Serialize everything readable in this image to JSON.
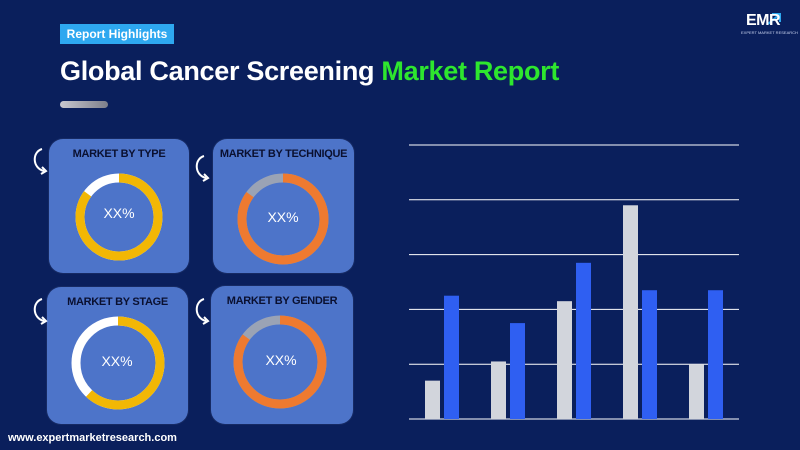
{
  "header": {
    "badge": "Report Highlights",
    "title_main": "Global Cancer Screening ",
    "title_accent": "Market Report"
  },
  "logo": {
    "text": "EMR",
    "subtitle": "EXPERT MARKET RESEARCH"
  },
  "segments": [
    {
      "label": "MARKET BY TYPE",
      "value": "XX%",
      "ring_color": "#f2b705",
      "track_color": "#ffffff",
      "fill_fraction": 0.85
    },
    {
      "label": "MARKET BY TECHNIQUE",
      "value": "XX%",
      "ring_color": "#ee7a30",
      "track_color": "#9aa3b5",
      "fill_fraction": 0.85
    },
    {
      "label": "MARKET BY STAGE",
      "value": "XX%",
      "ring_color": "#f2b705",
      "track_color": "#ffffff",
      "fill_fraction": 0.62
    },
    {
      "label": "MARKET BY GENDER",
      "value": "XX%",
      "ring_color": "#ee7a30",
      "track_color": "#9aa3b5",
      "fill_fraction": 0.85
    }
  ],
  "chart_data": {
    "type": "bar",
    "categories": [
      "",
      "",
      "",
      "",
      ""
    ],
    "series": [
      {
        "values": [
          0.7,
          1.05,
          2.15,
          3.9,
          1.0
        ],
        "color": "#d2d5dc"
      },
      {
        "values": [
          2.25,
          1.75,
          2.85,
          2.35,
          2.35
        ],
        "color": "#2f5ff2"
      }
    ],
    "ylim": [
      0,
      5
    ],
    "grid": true
  },
  "footer": {
    "website": "www.expertmarketresearch.com"
  }
}
